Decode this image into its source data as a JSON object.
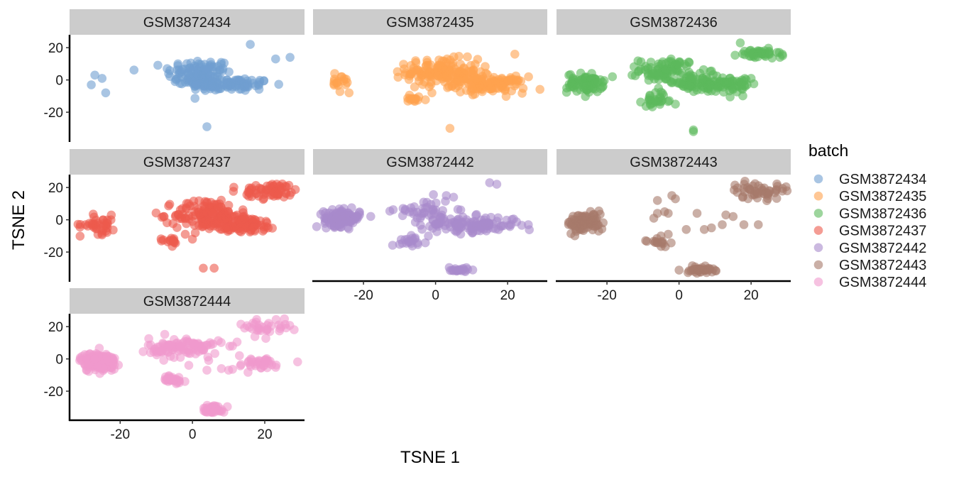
{
  "chart_data": {
    "type": "scatter",
    "facet_by": "batch",
    "xlabel": "TSNE 1",
    "ylabel": "TSNE 2",
    "xlim": [
      -34,
      31
    ],
    "ylim": [
      -38,
      28
    ],
    "xticks": [
      -20,
      0,
      20
    ],
    "yticks": [
      20,
      0,
      -20
    ],
    "x_tick_labels": [
      "-20",
      "0",
      "20"
    ],
    "y_tick_labels": [
      "20",
      "0",
      "-20"
    ],
    "grid": false,
    "point_alpha": 0.6,
    "legend": {
      "title": "batch",
      "position": "right",
      "entries": [
        "GSM3872434",
        "GSM3872435",
        "GSM3872436",
        "GSM3872437",
        "GSM3872442",
        "GSM3872443",
        "GSM3872444"
      ]
    },
    "panels": [
      {
        "label": "GSM3872434",
        "color": "#6f9fd0",
        "clusters": [
          {
            "cx": 2,
            "cy": 4,
            "sx": 4.5,
            "sy": 4.5,
            "n": 110
          },
          {
            "cx": 10,
            "cy": -3,
            "sx": 6,
            "sy": 2,
            "n": 100
          }
        ],
        "points": [
          [
            -27,
            3
          ],
          [
            -25,
            1
          ],
          [
            -28,
            -3
          ],
          [
            -24,
            -8
          ],
          [
            -7,
            7
          ],
          [
            16,
            22
          ],
          [
            23,
            13
          ],
          [
            27,
            14
          ],
          [
            4,
            -29
          ]
        ]
      },
      {
        "label": "GSM3872435",
        "color": "#ffa14f",
        "clusters": [
          {
            "cx": 2,
            "cy": 5,
            "sx": 5,
            "sy": 4,
            "n": 150
          },
          {
            "cx": 15,
            "cy": -3,
            "sx": 5,
            "sy": 2.5,
            "n": 110
          },
          {
            "cx": -6,
            "cy": -12,
            "sx": 1.8,
            "sy": 1.4,
            "n": 14
          },
          {
            "cx": -26,
            "cy": -3,
            "sx": 2,
            "sy": 2.5,
            "n": 15
          }
        ],
        "points": [
          [
            -28,
            4
          ],
          [
            -26,
            2
          ],
          [
            -24,
            -8
          ],
          [
            22,
            16
          ],
          [
            4,
            -30
          ],
          [
            -1,
            -8
          ]
        ]
      },
      {
        "label": "GSM3872436",
        "color": "#5bb95b",
        "clusters": [
          {
            "cx": -26,
            "cy": -2,
            "sx": 2.5,
            "sy": 3,
            "n": 80
          },
          {
            "cx": -3,
            "cy": 6,
            "sx": 4,
            "sy": 3.5,
            "n": 90
          },
          {
            "cx": 6,
            "cy": -3,
            "sx": 6,
            "sy": 2.5,
            "n": 90
          },
          {
            "cx": -6,
            "cy": -13,
            "sx": 2,
            "sy": 1.5,
            "n": 25
          },
          {
            "cx": 22,
            "cy": 16,
            "sx": 3,
            "sy": 1.5,
            "n": 40
          },
          {
            "cx": 14,
            "cy": -2,
            "sx": 4,
            "sy": 3,
            "n": 40
          }
        ],
        "points": [
          [
            4,
            -31
          ],
          [
            4,
            -32
          ],
          [
            17,
            23
          ],
          [
            28,
            14
          ],
          [
            20,
            1
          ],
          [
            -1,
            -15
          ]
        ]
      },
      {
        "label": "GSM3872437",
        "color": "#ed5a4d",
        "clusters": [
          {
            "cx": 4,
            "cy": 3,
            "sx": 4.5,
            "sy": 5,
            "n": 140
          },
          {
            "cx": 14,
            "cy": -3,
            "sx": 5,
            "sy": 2.5,
            "n": 90
          },
          {
            "cx": 22,
            "cy": 18,
            "sx": 4,
            "sy": 2.5,
            "n": 60
          },
          {
            "cx": -26,
            "cy": -3,
            "sx": 2.5,
            "sy": 3,
            "n": 40
          },
          {
            "cx": -6,
            "cy": -13,
            "sx": 1.5,
            "sy": 1.5,
            "n": 14
          }
        ],
        "points": [
          [
            3,
            -30
          ],
          [
            6,
            -30
          ],
          [
            0,
            -12
          ],
          [
            -8,
            2
          ],
          [
            -5,
            -14
          ],
          [
            -2,
            -9
          ],
          [
            10,
            9
          ]
        ]
      },
      {
        "label": "GSM3872442",
        "color": "#a98bcb",
        "clusters": [
          {
            "cx": -26,
            "cy": 1,
            "sx": 2.5,
            "sy": 2.5,
            "n": 130
          },
          {
            "cx": 10,
            "cy": -3,
            "sx": 7,
            "sy": 2.5,
            "n": 120
          },
          {
            "cx": -3,
            "cy": 5,
            "sx": 4,
            "sy": 4,
            "n": 45
          },
          {
            "cx": -6,
            "cy": -13,
            "sx": 2,
            "sy": 1.5,
            "n": 20
          },
          {
            "cx": 6,
            "cy": -31,
            "sx": 1.5,
            "sy": 1,
            "n": 20
          }
        ],
        "points": [
          [
            15,
            23
          ],
          [
            17,
            22
          ],
          [
            3,
            15
          ],
          [
            5,
            14
          ],
          [
            -9,
            7
          ],
          [
            -2,
            -10
          ]
        ]
      },
      {
        "label": "GSM3872443",
        "color": "#a77a6a",
        "clusters": [
          {
            "cx": -26,
            "cy": -2,
            "sx": 2.5,
            "sy": 3,
            "n": 90
          },
          {
            "cx": 22,
            "cy": 18,
            "sx": 4,
            "sy": 2.5,
            "n": 50
          },
          {
            "cx": 6,
            "cy": -31,
            "sx": 2,
            "sy": 1,
            "n": 40
          },
          {
            "cx": -6,
            "cy": -13,
            "sx": 1.5,
            "sy": 1.5,
            "n": 15
          }
        ],
        "points": [
          [
            -6,
            12
          ],
          [
            -2,
            15
          ],
          [
            -1,
            13
          ],
          [
            -4,
            5
          ],
          [
            -3,
            4
          ],
          [
            -6,
            4
          ],
          [
            -7,
            1
          ],
          [
            5,
            4
          ],
          [
            13,
            3
          ],
          [
            15,
            2
          ],
          [
            18,
            -3
          ],
          [
            22,
            -3
          ],
          [
            12,
            -3
          ],
          [
            7,
            -6
          ],
          [
            9,
            -5
          ],
          [
            2,
            -6
          ],
          [
            -3,
            -9
          ],
          [
            -5,
            -10
          ]
        ]
      },
      {
        "label": "GSM3872444",
        "color": "#f09acd",
        "clusters": [
          {
            "cx": -26,
            "cy": -2,
            "sx": 2.5,
            "sy": 3,
            "n": 130
          },
          {
            "cx": -2,
            "cy": 7,
            "sx": 5,
            "sy": 3,
            "n": 100
          },
          {
            "cx": 20,
            "cy": 20,
            "sx": 3.5,
            "sy": 2.5,
            "n": 35
          },
          {
            "cx": 6,
            "cy": -31,
            "sx": 1.5,
            "sy": 1.2,
            "n": 40
          },
          {
            "cx": -6,
            "cy": -13,
            "sx": 2,
            "sy": 1.5,
            "n": 30
          },
          {
            "cx": 18,
            "cy": -3,
            "sx": 4,
            "sy": 2,
            "n": 35
          }
        ],
        "points": [
          [
            4,
            -7
          ],
          [
            8,
            -6
          ],
          [
            10,
            -7
          ],
          [
            13,
            2
          ],
          [
            -1,
            -4
          ]
        ]
      }
    ]
  }
}
